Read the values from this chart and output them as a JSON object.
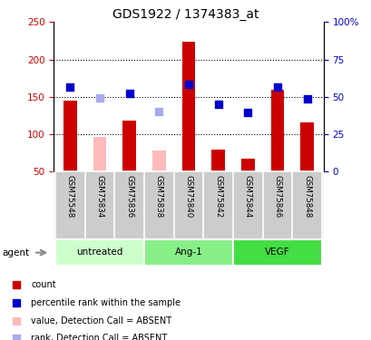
{
  "title": "GDS1922 / 1374383_at",
  "samples": [
    "GSM75548",
    "GSM75834",
    "GSM75836",
    "GSM75838",
    "GSM75840",
    "GSM75842",
    "GSM75844",
    "GSM75846",
    "GSM75848"
  ],
  "groups": [
    {
      "name": "untreated",
      "indices": [
        0,
        1,
        2
      ]
    },
    {
      "name": "Ang-1",
      "indices": [
        3,
        4,
        5
      ]
    },
    {
      "name": "VEGF",
      "indices": [
        6,
        7,
        8
      ]
    }
  ],
  "group_colors": [
    "#ccffcc",
    "#88ee88",
    "#44dd44"
  ],
  "bar_values": [
    145,
    null,
    118,
    null,
    224,
    80,
    68,
    160,
    116
  ],
  "bar_absent": [
    null,
    96,
    null,
    78,
    null,
    null,
    null,
    null,
    null
  ],
  "rank_values": [
    163,
    null,
    155,
    null,
    167,
    140,
    129,
    163,
    148
  ],
  "rank_absent": [
    null,
    149,
    null,
    130,
    null,
    null,
    null,
    null,
    null
  ],
  "bar_color": "#cc0000",
  "bar_absent_color": "#ffbbbb",
  "rank_color": "#0000cc",
  "rank_absent_color": "#aaaaee",
  "ylim_left": [
    50,
    250
  ],
  "yticks_left": [
    50,
    100,
    150,
    200,
    250
  ],
  "yticks_right": [
    0,
    25,
    50,
    75,
    100
  ],
  "ytick_labels_right": [
    "0",
    "25",
    "50",
    "75",
    "100%"
  ],
  "hlines": [
    100,
    150,
    200
  ],
  "bar_width": 0.45,
  "rank_marker_size": 40,
  "sample_bg": "#cccccc",
  "legend_items": [
    {
      "color": "#cc0000",
      "label": "count"
    },
    {
      "color": "#0000cc",
      "label": "percentile rank within the sample"
    },
    {
      "color": "#ffbbbb",
      "label": "value, Detection Call = ABSENT"
    },
    {
      "color": "#aaaaee",
      "label": "rank, Detection Call = ABSENT"
    }
  ]
}
